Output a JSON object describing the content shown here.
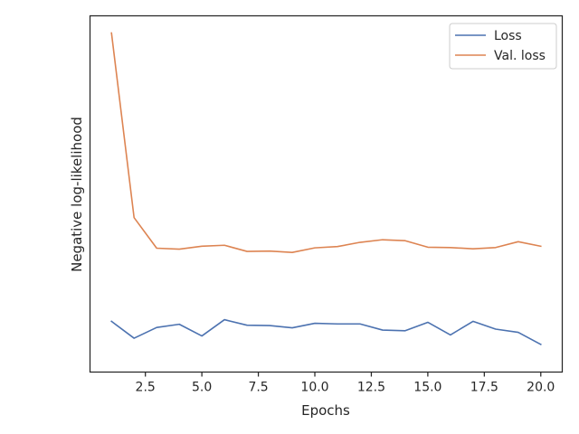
{
  "chart_data": {
    "type": "line",
    "title": "",
    "xlabel": "Epochs",
    "ylabel": "Negative log-likelihood",
    "xlim": [
      0.05,
      20.95
    ],
    "ylim": [
      0,
      1
    ],
    "xticks": [
      2.5,
      5.0,
      7.5,
      10.0,
      12.5,
      15.0,
      17.5,
      20.0
    ],
    "xtick_labels": [
      "2.5",
      "5.0",
      "7.5",
      "10.0",
      "12.5",
      "15.0",
      "17.5",
      "20.0"
    ],
    "yticks": [],
    "grid": false,
    "legend": {
      "location": "top-right"
    },
    "x": [
      1,
      2,
      3,
      4,
      5,
      6,
      7,
      8,
      9,
      10,
      11,
      12,
      13,
      14,
      15,
      16,
      17,
      18,
      19,
      20
    ],
    "series": [
      {
        "name": "Loss",
        "color": "#4c72b0",
        "values": [
          0.113,
          0.061,
          0.094,
          0.104,
          0.068,
          0.118,
          0.101,
          0.1,
          0.093,
          0.107,
          0.105,
          0.105,
          0.086,
          0.084,
          0.11,
          0.071,
          0.113,
          0.089,
          0.079,
          0.042
        ]
      },
      {
        "name": "Val. loss",
        "color": "#dd8452",
        "values": [
          1.0,
          0.432,
          0.338,
          0.335,
          0.344,
          0.347,
          0.328,
          0.329,
          0.325,
          0.339,
          0.343,
          0.356,
          0.364,
          0.361,
          0.341,
          0.34,
          0.336,
          0.34,
          0.358,
          0.344
        ]
      }
    ]
  }
}
